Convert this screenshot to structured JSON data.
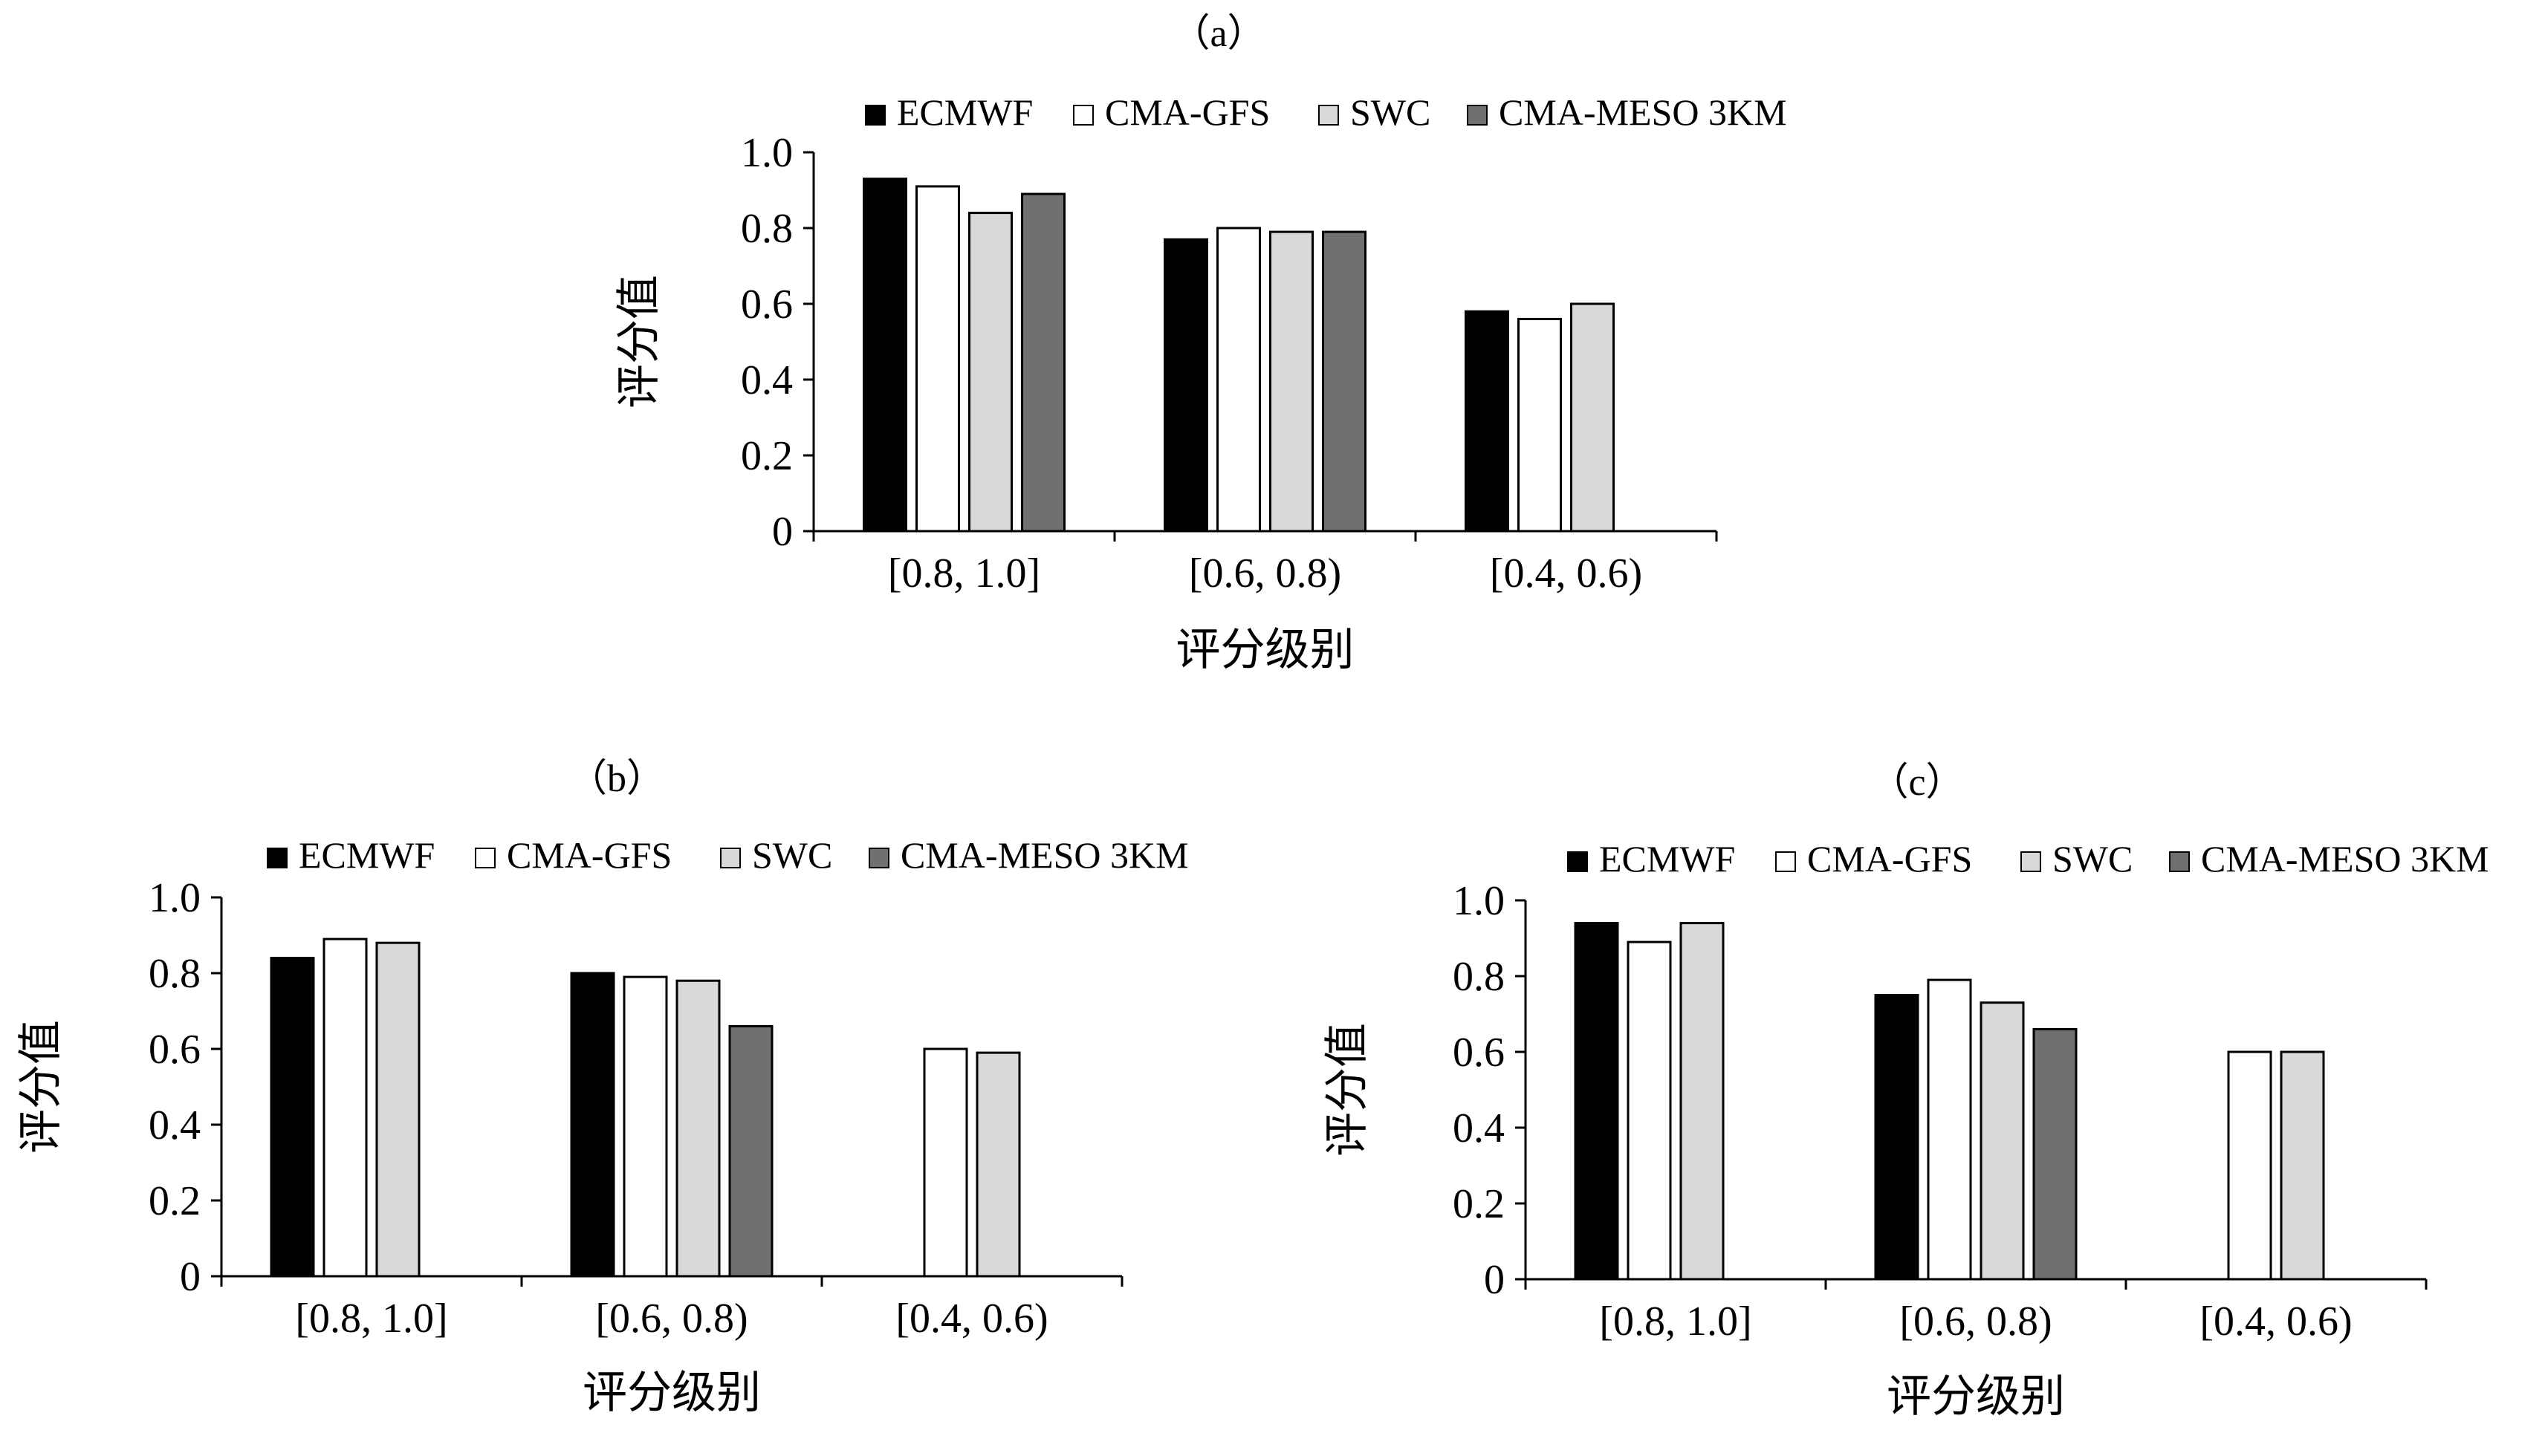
{
  "figure": {
    "panels": [
      "（a）",
      "（b）",
      "（c）"
    ]
  },
  "legend_colors": {
    "ECMWF": "#000000",
    "CMA-GFS": "#ffffff",
    "SWC": "#d9d9d9",
    "CMA-MESO 3KM": "#707070"
  },
  "chart_data": [
    {
      "type": "bar",
      "panel": "（a）",
      "categories": [
        "[0.8, 1.0]",
        "[0.6, 0.8)",
        "[0.4, 0.6)"
      ],
      "series": [
        {
          "name": "ECMWF",
          "values": [
            0.93,
            0.77,
            0.58
          ]
        },
        {
          "name": "CMA-GFS",
          "values": [
            0.91,
            0.8,
            0.56
          ]
        },
        {
          "name": "SWC",
          "values": [
            0.84,
            0.79,
            0.6
          ]
        },
        {
          "name": "CMA-MESO 3KM",
          "values": [
            0.89,
            0.79,
            null
          ]
        }
      ],
      "xlabel": "评分级别",
      "ylabel": "评分值",
      "ylim": [
        0,
        1.0
      ],
      "yticks": [
        "0",
        "0.2",
        "0.4",
        "0.6",
        "0.8",
        "1.0"
      ],
      "legend": "top"
    },
    {
      "type": "bar",
      "panel": "（b）",
      "categories": [
        "[0.8, 1.0]",
        "[0.6, 0.8)",
        "[0.4, 0.6)"
      ],
      "series": [
        {
          "name": "ECMWF",
          "values": [
            0.84,
            0.8,
            null
          ]
        },
        {
          "name": "CMA-GFS",
          "values": [
            0.89,
            0.79,
            0.6
          ]
        },
        {
          "name": "SWC",
          "values": [
            0.88,
            0.78,
            0.59
          ]
        },
        {
          "name": "CMA-MESO 3KM",
          "values": [
            null,
            0.66,
            null
          ]
        }
      ],
      "xlabel": "评分级别",
      "ylabel": "评分值",
      "ylim": [
        0,
        1.0
      ],
      "yticks": [
        "0",
        "0.2",
        "0.4",
        "0.6",
        "0.8",
        "1.0"
      ],
      "legend": "top"
    },
    {
      "type": "bar",
      "panel": "（c）",
      "categories": [
        "[0.8, 1.0]",
        "[0.6, 0.8)",
        "[0.4, 0.6)"
      ],
      "series": [
        {
          "name": "ECMWF",
          "values": [
            0.94,
            0.75,
            null
          ]
        },
        {
          "name": "CMA-GFS",
          "values": [
            0.89,
            0.79,
            0.6
          ]
        },
        {
          "name": "SWC",
          "values": [
            0.94,
            0.73,
            0.6
          ]
        },
        {
          "name": "CMA-MESO 3KM",
          "values": [
            null,
            0.66,
            null
          ]
        }
      ],
      "xlabel": "评分级别",
      "ylabel": "评分值",
      "ylim": [
        0,
        1.0
      ],
      "yticks": [
        "0",
        "0.2",
        "0.4",
        "0.6",
        "0.8",
        "1.0"
      ],
      "legend": "top"
    }
  ]
}
